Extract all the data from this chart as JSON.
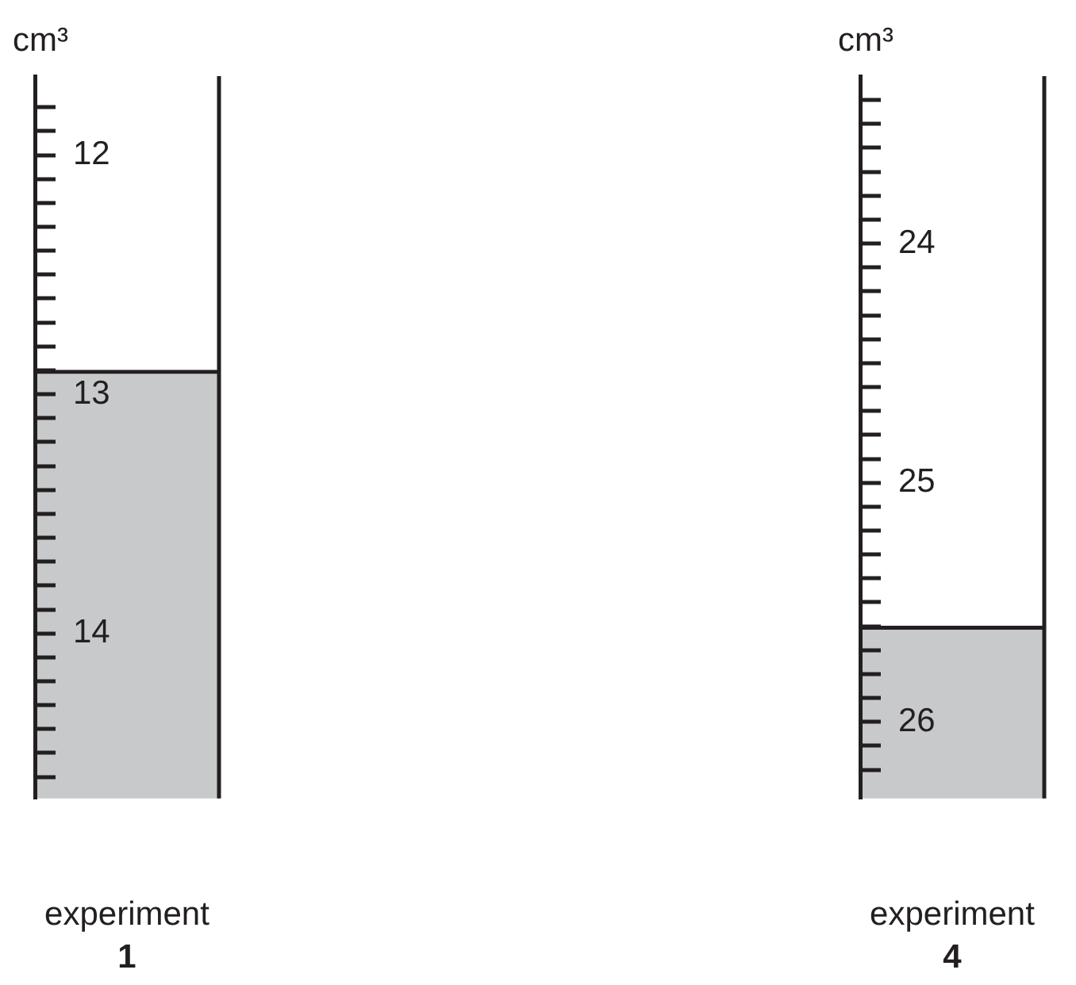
{
  "chart_data": [
    {
      "type": "bar",
      "categories": [
        "1"
      ],
      "xlabel": "experiment",
      "ylabel": "cm³",
      "base": [
        12.9
      ],
      "values": [
        1.79
      ],
      "color": "#c8c9cb",
      "ylim": [
        14.69,
        11.67
      ],
      "yticks": [
        {
          "value": 11.8,
          "label": null
        },
        {
          "value": 11.9,
          "label": null
        },
        12,
        {
          "value": 12.1,
          "label": null
        },
        {
          "value": 12.2,
          "label": null
        },
        {
          "value": 12.3,
          "label": null
        },
        {
          "value": 12.4,
          "label": null
        },
        {
          "value": 12.5,
          "label": null
        },
        {
          "value": 12.6,
          "label": null
        },
        {
          "value": 12.7,
          "label": null
        },
        {
          "value": 12.8,
          "label": null
        },
        {
          "value": 12.9,
          "label": null
        },
        13,
        {
          "value": 13.1,
          "label": null
        },
        {
          "value": 13.2,
          "label": null
        },
        {
          "value": 13.3,
          "label": null
        },
        {
          "value": 13.4,
          "label": null
        },
        {
          "value": 13.5,
          "label": null
        },
        {
          "value": 13.6,
          "label": null
        },
        {
          "value": 13.7,
          "label": null
        },
        {
          "value": 13.8,
          "label": null
        },
        {
          "value": 13.9,
          "label": null
        },
        14,
        {
          "value": 14.1,
          "label": null
        },
        {
          "value": 14.2,
          "label": null
        },
        {
          "value": 14.3,
          "label": null
        },
        {
          "value": 14.4,
          "label": null
        },
        {
          "value": 14.5,
          "label": null
        },
        {
          "value": 14.6,
          "label": null
        }
      ]
    },
    {
      "type": "bar",
      "categories": [
        "4"
      ],
      "xlabel": "experiment",
      "ylabel": "cm³",
      "base": [
        25.6
      ],
      "values": [
        0.72
      ],
      "color": "#c8c9cb",
      "ylim": [
        26.32,
        23.3
      ],
      "yticks": [
        {
          "value": 23.4,
          "label": null
        },
        {
          "value": 23.5,
          "label": null
        },
        {
          "value": 23.6,
          "label": null
        },
        {
          "value": 23.7,
          "label": null
        },
        {
          "value": 23.8,
          "label": null
        },
        {
          "value": 23.9,
          "label": null
        },
        24,
        {
          "value": 24.1,
          "label": null
        },
        {
          "value": 24.2,
          "label": null
        },
        {
          "value": 24.3,
          "label": null
        },
        {
          "value": 24.4,
          "label": null
        },
        {
          "value": 24.5,
          "label": null
        },
        {
          "value": 24.6,
          "label": null
        },
        {
          "value": 24.7,
          "label": null
        },
        {
          "value": 24.8,
          "label": null
        },
        {
          "value": 24.9,
          "label": null
        },
        25,
        {
          "value": 25.1,
          "label": null
        },
        {
          "value": 25.2,
          "label": null
        },
        {
          "value": 25.3,
          "label": null
        },
        {
          "value": 25.4,
          "label": null
        },
        {
          "value": 25.5,
          "label": null
        },
        {
          "value": 25.6,
          "label": null
        },
        {
          "value": 25.7,
          "label": null
        },
        {
          "value": 25.8,
          "label": null
        },
        {
          "value": 25.9,
          "label": null
        },
        26,
        {
          "value": 26.1,
          "label": null
        },
        {
          "value": 26.2,
          "label": null
        }
      ]
    }
  ]
}
